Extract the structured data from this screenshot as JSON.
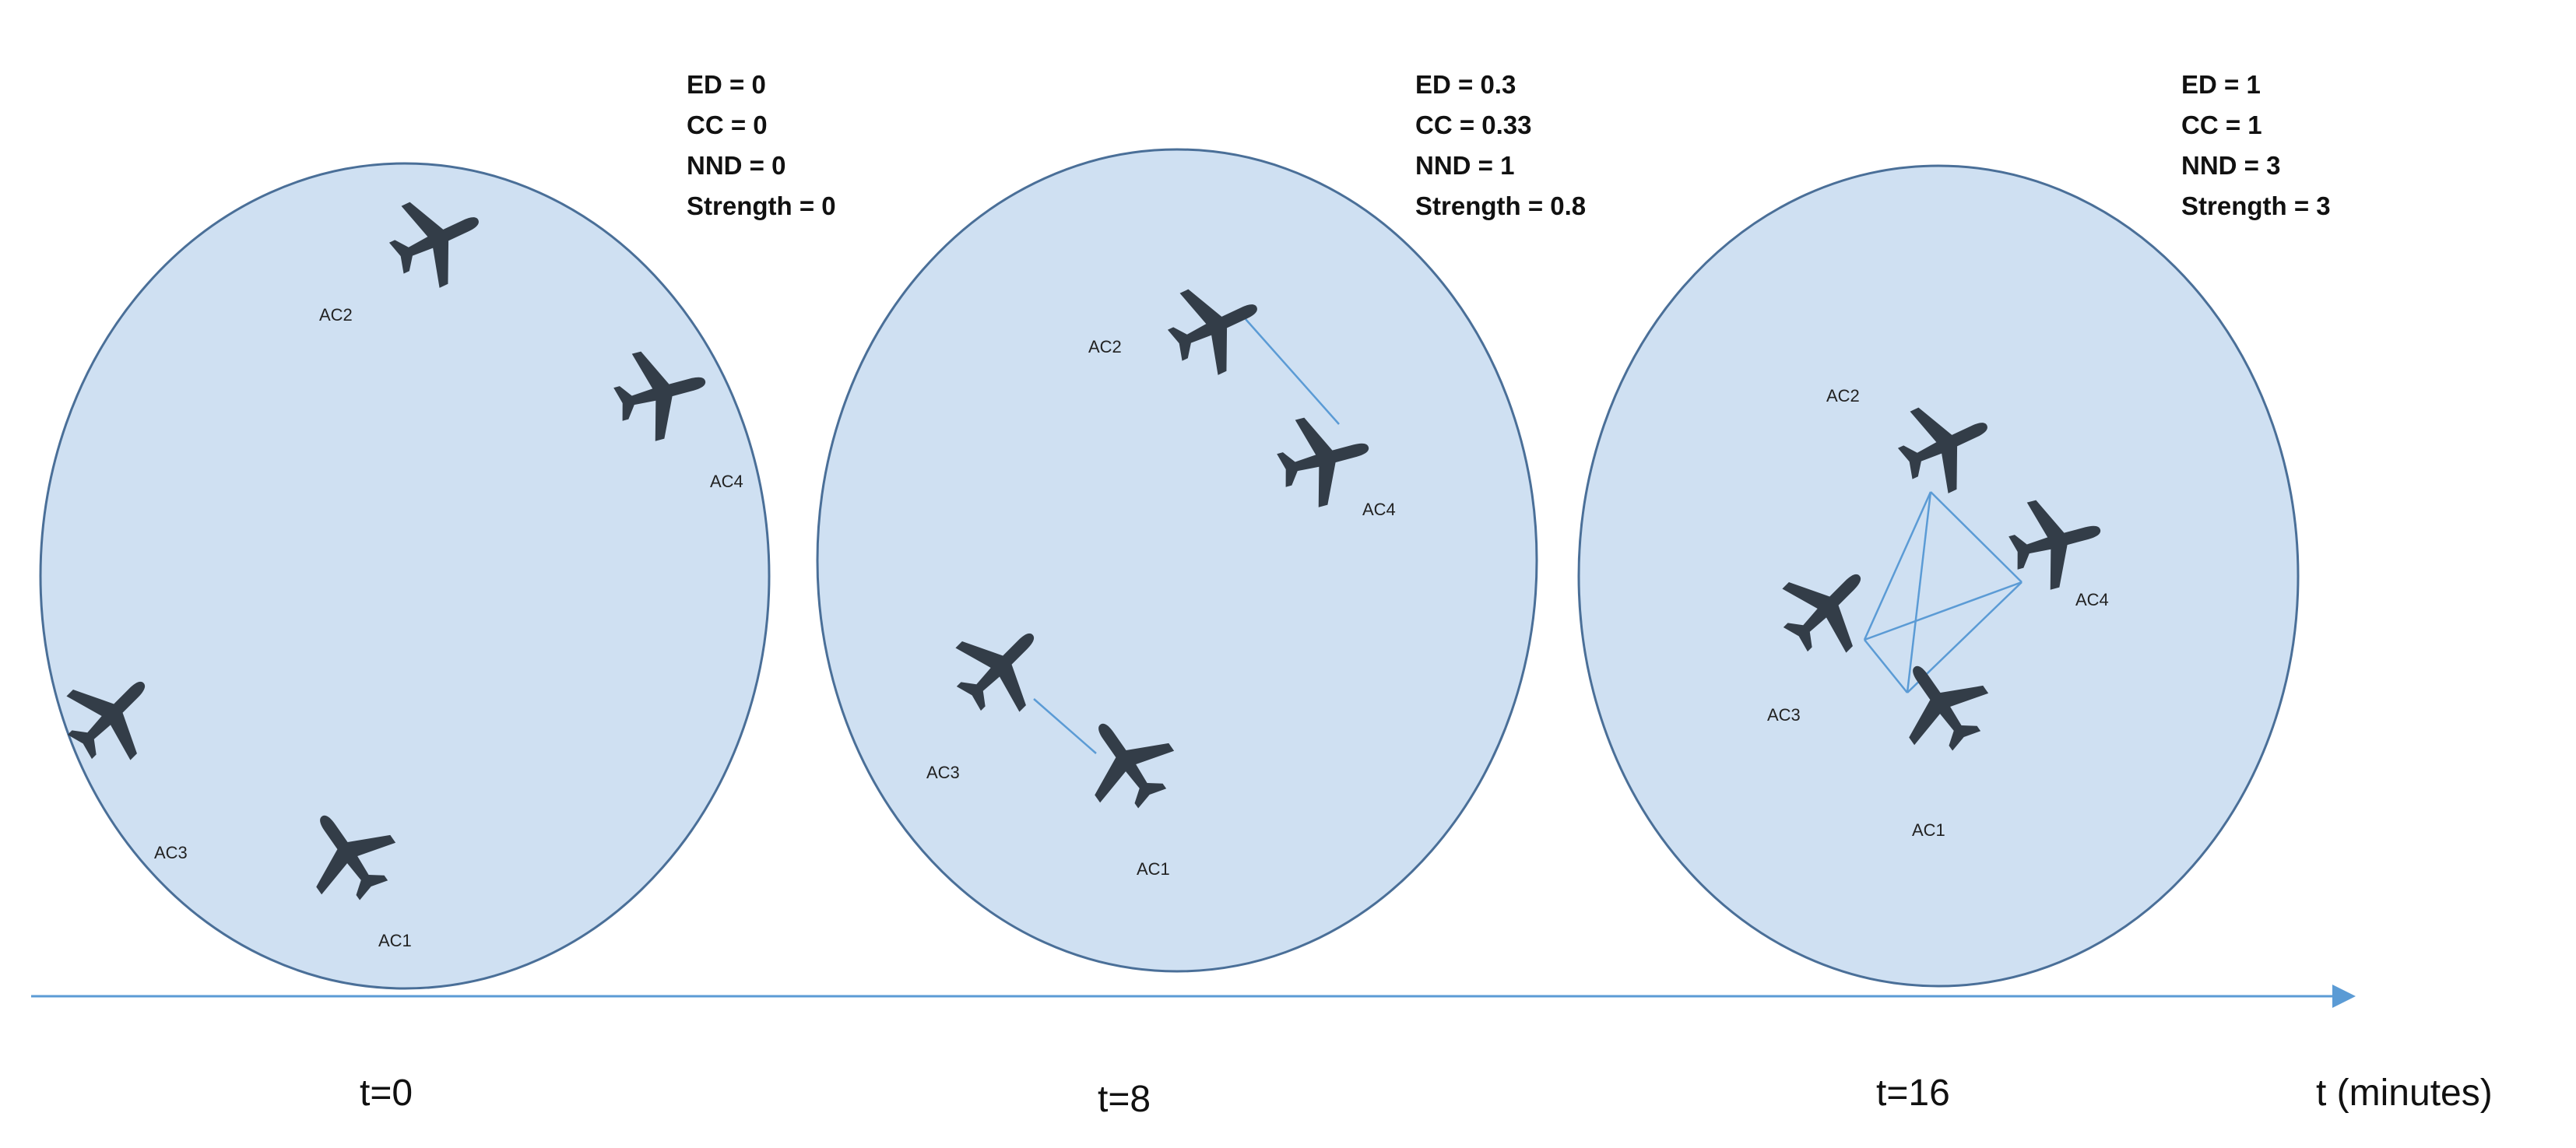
{
  "scenes": [
    {
      "time_label": "t=0",
      "metrics": [
        "ED = 0",
        "CC = 0",
        "NND = 0",
        "Strength = 0"
      ],
      "aircraft": [
        "AC1",
        "AC2",
        "AC3",
        "AC4"
      ]
    },
    {
      "time_label": "t=8",
      "metrics": [
        "ED = 0.3",
        "CC = 0.33",
        "NND = 1",
        "Strength = 0.8"
      ],
      "aircraft": [
        "AC1",
        "AC2",
        "AC3",
        "AC4"
      ]
    },
    {
      "time_label": "t=16",
      "metrics": [
        "ED = 1",
        "CC = 1",
        "NND = 3",
        "Strength = 3"
      ],
      "aircraft": [
        "AC1",
        "AC2",
        "AC3",
        "AC4"
      ]
    }
  ],
  "axis": {
    "label": "t (minutes)"
  },
  "colors": {
    "circle_fill": "#cfe0f2",
    "circle_stroke": "#4a6f98",
    "link": "#5b9bd5",
    "aircraft": "#333d48",
    "axis": "#5b9bd5"
  },
  "icons": {
    "aircraft": "airplane-icon"
  }
}
